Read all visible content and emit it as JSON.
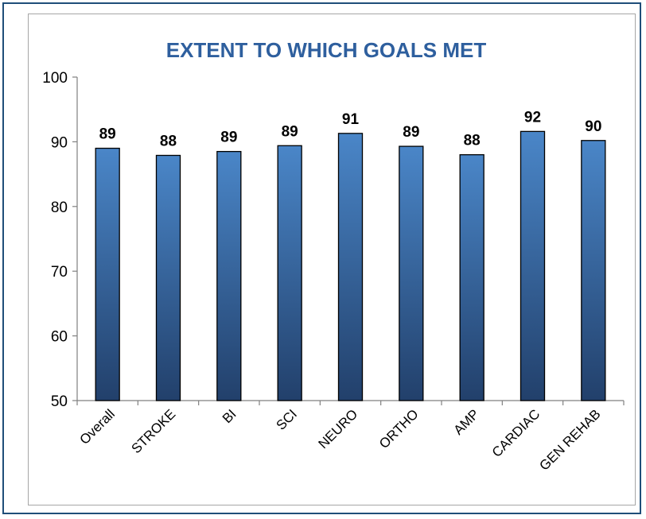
{
  "chart_data": {
    "type": "bar",
    "title": "EXTENT TO WHICH GOALS MET",
    "xlabel": "",
    "ylabel": "",
    "categories": [
      "Overall",
      "STROKE",
      "BI",
      "SCI",
      "NEURO",
      "ORTHO",
      "AMP",
      "CARDIAC",
      "GEN REHAB"
    ],
    "values": [
      89.0,
      87.9,
      88.5,
      89.4,
      91.3,
      89.3,
      88.0,
      91.6,
      90.2
    ],
    "data_labels": [
      "89",
      "88",
      "89",
      "89",
      "91",
      "89",
      "88",
      "92",
      "90"
    ],
    "y_ticks": [
      "50",
      "60",
      "70",
      "80",
      "90",
      "100"
    ],
    "ylim": [
      50,
      100
    ],
    "grid": false,
    "legend": "none",
    "colors": {
      "bar_top": "#4a86c8",
      "bar_bottom": "#22406b",
      "bar_outline": "#000000",
      "title": "#2e5f9e",
      "frame": "#1f4e79"
    }
  }
}
